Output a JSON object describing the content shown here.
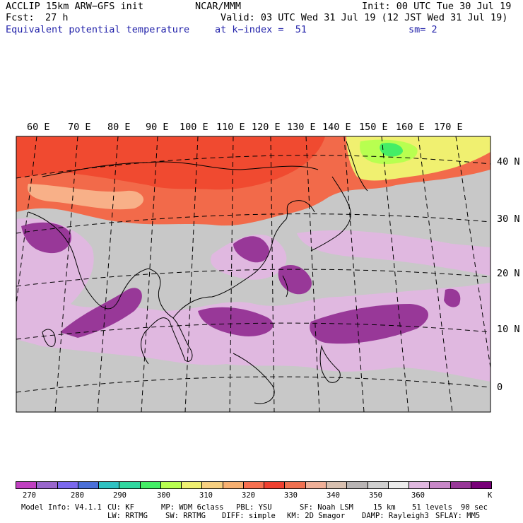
{
  "header": {
    "model": "ACCLIP 15km ARW−GFS init",
    "org": "NCAR/MMM",
    "init": "Init: 00 UTC Tue 30 Jul 19",
    "fcst_label": "Fcst:",
    "fcst_value": "27 h",
    "valid": "Valid: 03 UTC Wed 31 Jul 19 (12 JST Wed 31 Jul 19)",
    "field": "Equivalent potential temperature",
    "level": "at k−index =  51",
    "smoothing": "sm= 2"
  },
  "map": {
    "lon_labels": [
      "60 E",
      "70 E",
      "80 E",
      "90 E",
      "100 E",
      "110 E",
      "120 E",
      "130 E",
      "140 E",
      "150 E",
      "160 E",
      "170 E"
    ],
    "lat_labels": [
      "40 N",
      "30 N",
      "20 N",
      "10 N",
      "0"
    ]
  },
  "colorbar": {
    "colors": [
      "#c040c0",
      "#9966cc",
      "#7b68ee",
      "#4a6fd8",
      "#2ec2c2",
      "#30d8a0",
      "#44ee66",
      "#b8ff50",
      "#f0f070",
      "#f8d080",
      "#f8b070",
      "#f87050",
      "#f04030",
      "#f07050",
      "#f0b098",
      "#d8c0b0",
      "#b8b4b4",
      "#cfcfcf",
      "#ececec",
      "#e0b8e0",
      "#c888c8",
      "#983898",
      "#780078"
    ],
    "tick_labels": [
      "270",
      "280",
      "290",
      "300",
      "310",
      "320",
      "330",
      "340",
      "350",
      "360"
    ],
    "unit": "K"
  },
  "footer": {
    "line1": [
      "Model Info: V4.1.1",
      "CU: KF",
      "MP: WDM 6class",
      "PBL: YSU",
      "SF: Noah LSM",
      "15 km",
      "51 levels",
      "90 sec"
    ],
    "line2": [
      "LW: RRTMG",
      "SW: RRTMG",
      "DIFF: simple",
      "KM: 2D Smagor",
      "DAMP: Rayleigh3",
      "SFLAY: MM5"
    ]
  }
}
